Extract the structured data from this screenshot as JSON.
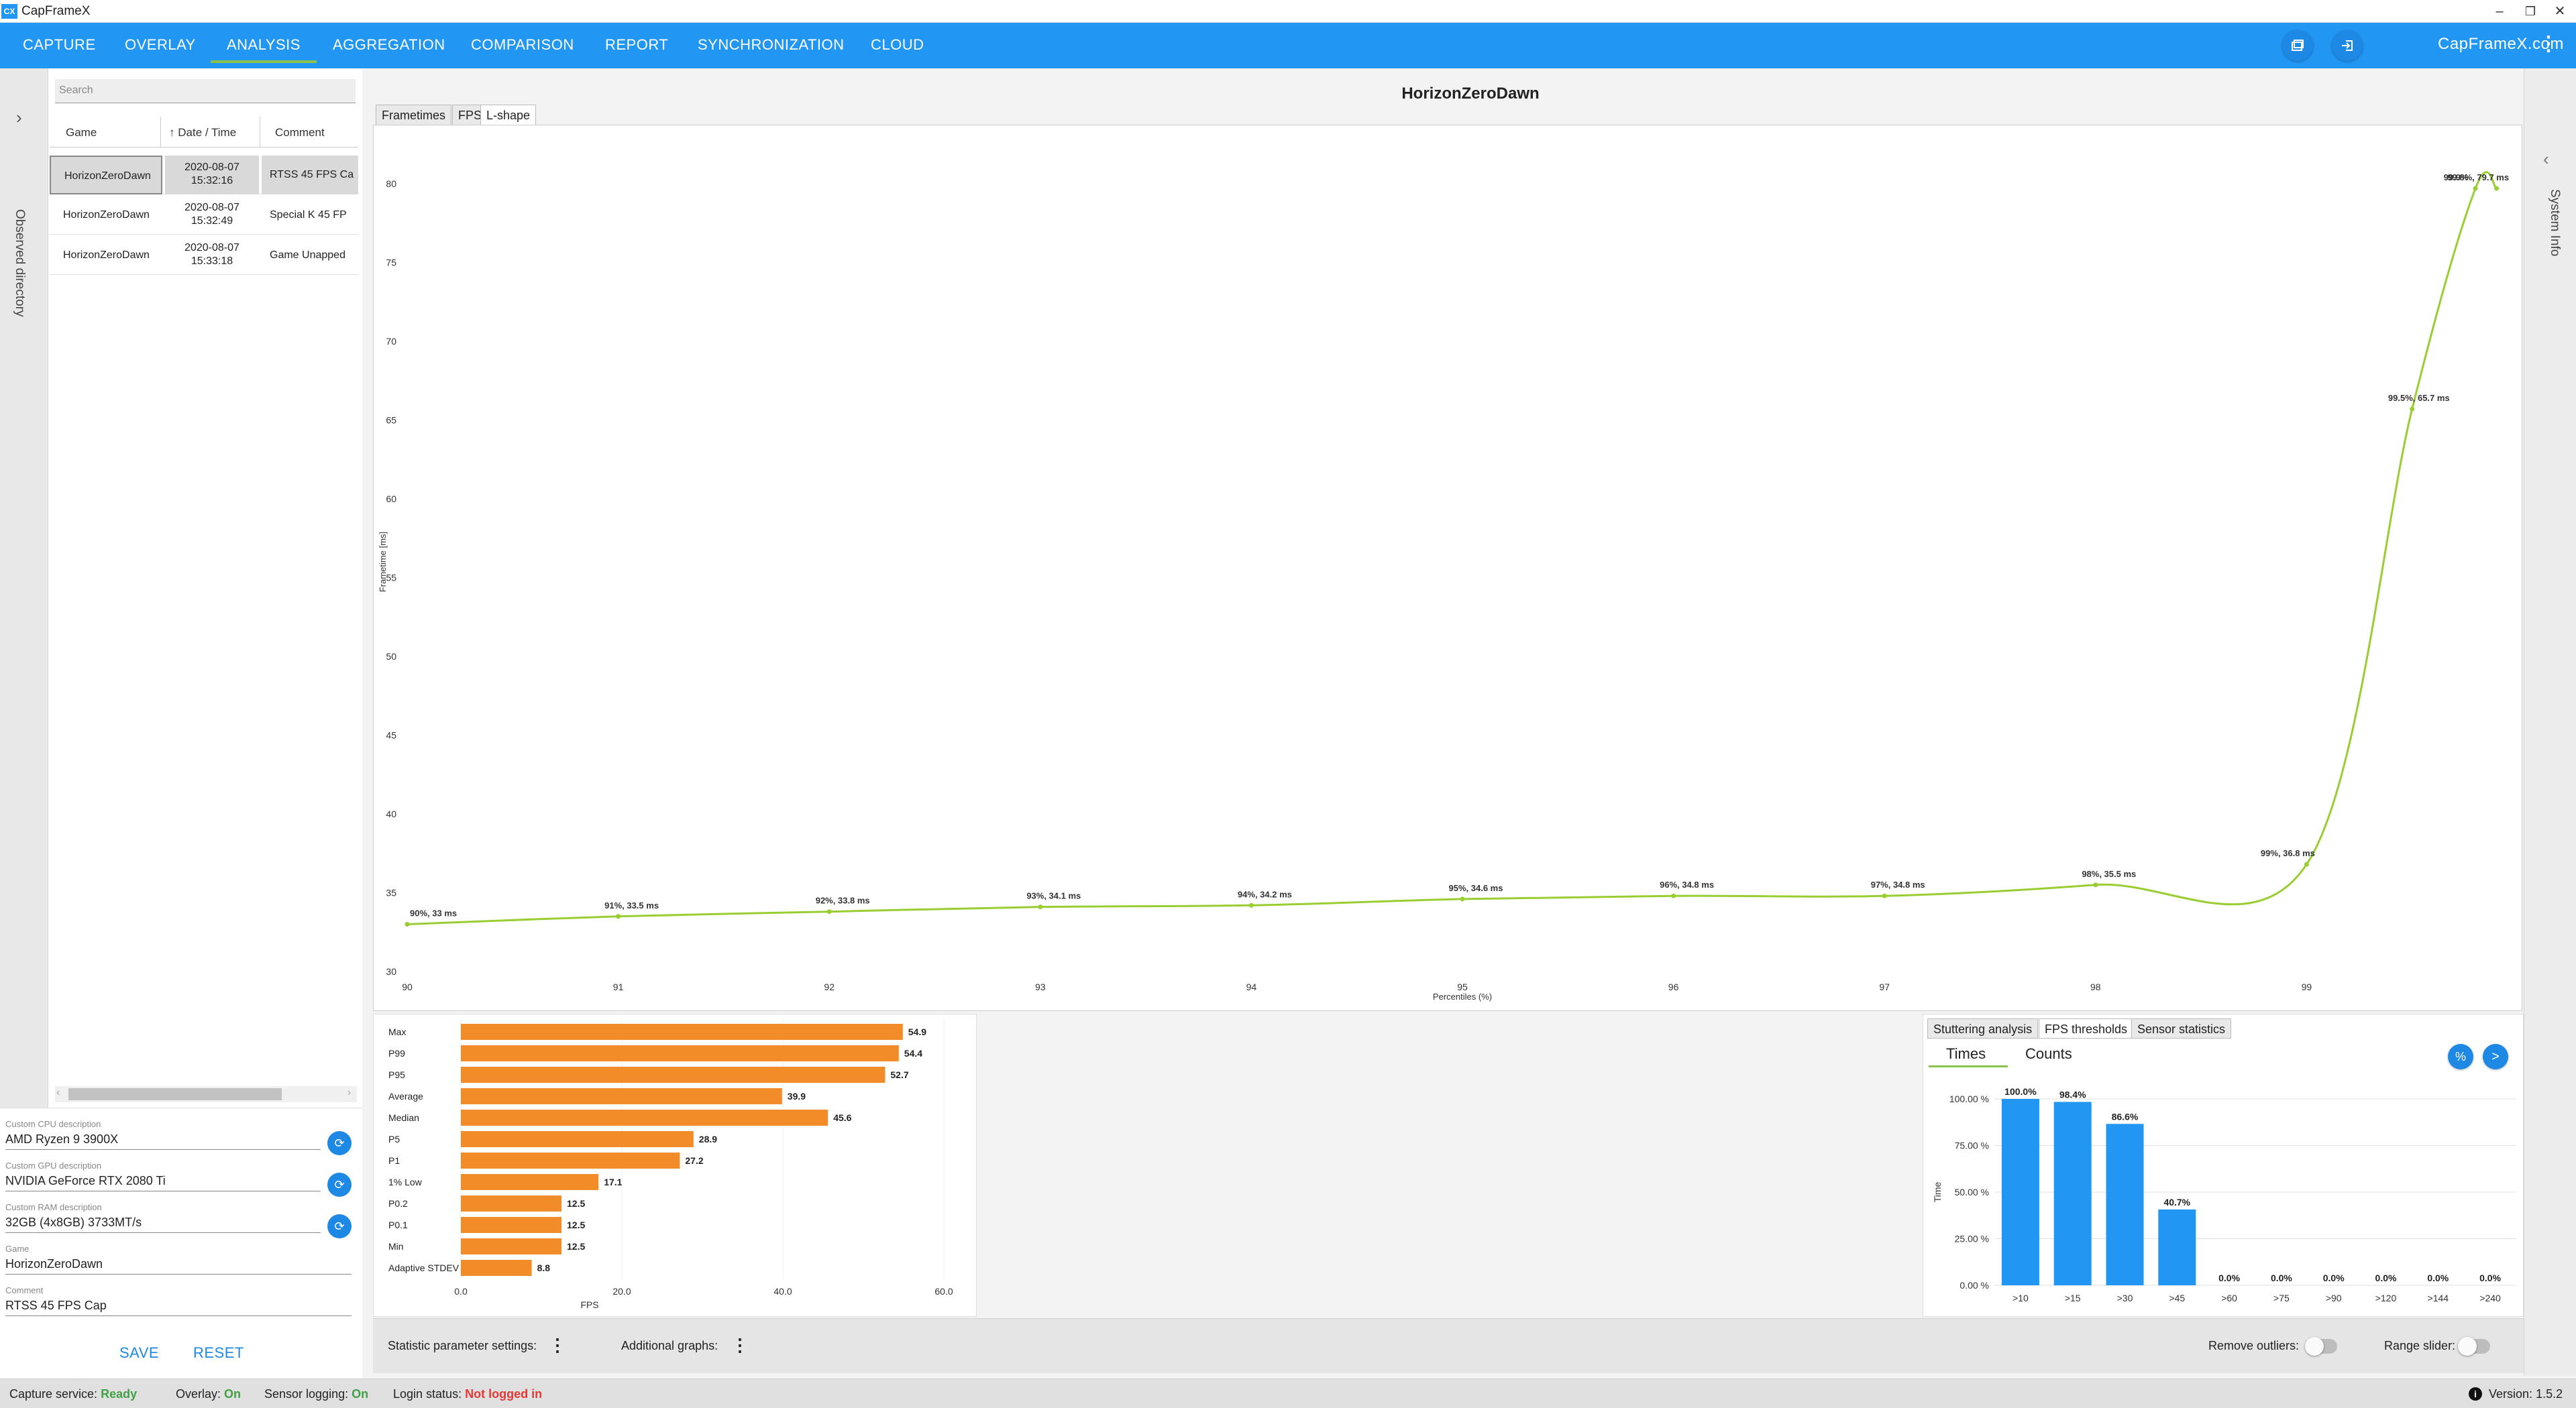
{
  "window": {
    "title": "CapFrameX",
    "logo_text": "CX",
    "controls": [
      "–",
      "❐",
      "✕"
    ]
  },
  "menu": {
    "items": [
      "CAPTURE",
      "OVERLAY",
      "ANALYSIS",
      "AGGREGATION",
      "COMPARISON",
      "REPORT",
      "SYNCHRONIZATION",
      "CLOUD"
    ],
    "active": "ANALYSIS",
    "website": "CapFrameX.com",
    "more": "⋮"
  },
  "observed_directory": {
    "label": "Observed directory",
    "chevron": "›"
  },
  "records": {
    "search_placeholder": "Search",
    "headers": {
      "game": "Game",
      "date_time": "Date / Time",
      "comment": "Comment",
      "sort_arrow": "↑"
    },
    "rows": [
      {
        "game": "HorizonZeroDawn",
        "date": "2020-08-07",
        "time": "15:32:16",
        "comment": "RTSS 45 FPS Ca",
        "selected": true
      },
      {
        "game": "HorizonZeroDawn",
        "date": "2020-08-07",
        "time": "15:32:49",
        "comment": "Special K 45 FP",
        "selected": false
      },
      {
        "game": "HorizonZeroDawn",
        "date": "2020-08-07",
        "time": "15:33:18",
        "comment": "Game Unapped",
        "selected": false
      }
    ]
  },
  "descriptions": {
    "cpu_label": "Custom CPU description",
    "cpu_value": "AMD Ryzen 9 3900X",
    "gpu_label": "Custom GPU description",
    "gpu_value": "NVIDIA GeForce RTX 2080 Ti",
    "ram_label": "Custom RAM description",
    "ram_value": "32GB (4x8GB) 3733MT/s",
    "game_label": "Game",
    "game_value": "HorizonZeroDawn",
    "comment_label": "Comment",
    "comment_value": "RTSS 45 FPS Cap",
    "save": "SAVE",
    "reset": "RESET"
  },
  "main": {
    "chart_title": "HorizonZeroDawn",
    "tabs": [
      "Frametimes",
      "FPS",
      "L-shape"
    ],
    "active_tab": "L-shape"
  },
  "system_info": {
    "label": "System Info",
    "chevron": "‹"
  },
  "chart_data": [
    {
      "type": "line",
      "title": "HorizonZeroDawn",
      "xlabel": "Percentiles (%)",
      "ylabel": "Frametime [ms]",
      "xlim": [
        90,
        100
      ],
      "ylim": [
        30,
        82
      ],
      "x_ticks": [
        90,
        91,
        92,
        93,
        94,
        95,
        96,
        97,
        98,
        99
      ],
      "y_ticks": [
        30,
        35,
        40,
        45,
        50,
        55,
        60,
        65,
        70,
        75,
        80
      ],
      "color": "#9acd32",
      "points": [
        {
          "x": 90,
          "y": 33,
          "label": "90%, 33 ms"
        },
        {
          "x": 91,
          "y": 33.5,
          "label": "91%, 33.5 ms"
        },
        {
          "x": 92,
          "y": 33.8,
          "label": "92%, 33.8 ms"
        },
        {
          "x": 93,
          "y": 34.1,
          "label": "93%, 34.1 ms"
        },
        {
          "x": 94,
          "y": 34.2,
          "label": "94%, 34.2 ms"
        },
        {
          "x": 95,
          "y": 34.6,
          "label": "95%, 34.6 ms"
        },
        {
          "x": 96,
          "y": 34.8,
          "label": "96%, 34.8 ms"
        },
        {
          "x": 97,
          "y": 34.8,
          "label": "97%, 34.8 ms"
        },
        {
          "x": 98,
          "y": 35.5,
          "label": "98%, 35.5 ms"
        },
        {
          "x": 99,
          "y": 36.8,
          "label": "99%, 36.8 ms"
        },
        {
          "x": 99.5,
          "y": 65.7,
          "label": "99.5%, 65.7 ms"
        },
        {
          "x": 99.8,
          "y": 79.7,
          "label": "99.8%, 79.7 ms"
        },
        {
          "x": 99.9,
          "y": 79.7,
          "label": "99.9%"
        }
      ]
    },
    {
      "type": "bar",
      "orientation": "horizontal",
      "xlabel": "FPS",
      "xlim": [
        0,
        60
      ],
      "x_ticks": [
        "0.0",
        "20.0",
        "40.0",
        "60.0"
      ],
      "color": "#f28c28",
      "categories": [
        "Max",
        "P99",
        "P95",
        "Average",
        "Median",
        "P5",
        "P1",
        "1% Low",
        "P0.2",
        "P0.1",
        "Min",
        "Adaptive STDEV"
      ],
      "values": [
        54.9,
        54.4,
        52.7,
        39.9,
        45.6,
        28.9,
        27.2,
        17.1,
        12.5,
        12.5,
        12.5,
        8.8
      ],
      "value_labels": [
        "54.9",
        "54.4",
        "52.7",
        "39.9",
        "45.6",
        "28.9",
        "27.2",
        "17.1",
        "12.5",
        "12.5",
        "12.5",
        "8.8"
      ]
    },
    {
      "type": "bar",
      "ylabel": "Time",
      "ylim": [
        0,
        100
      ],
      "y_ticks": [
        "0.00 %",
        "25.00 %",
        "50.00 %",
        "75.00 %",
        "100.00 %"
      ],
      "color": "#2196f3",
      "categories": [
        ">10",
        ">15",
        ">30",
        ">45",
        ">60",
        ">75",
        ">90",
        ">120",
        ">144",
        ">240"
      ],
      "values": [
        100.0,
        98.4,
        86.6,
        40.7,
        0.0,
        0.0,
        0.0,
        0.0,
        0.0,
        0.0
      ],
      "value_labels": [
        "100.0%",
        "98.4%",
        "86.6%",
        "40.7%",
        "0.0%",
        "0.0%",
        "0.0%",
        "0.0%",
        "0.0%",
        "0.0%"
      ]
    }
  ],
  "thresholds": {
    "tabs": [
      "Stuttering analysis",
      "FPS thresholds",
      "Sensor statistics"
    ],
    "active_tab": "FPS thresholds",
    "segments": [
      "Times",
      "Counts"
    ],
    "active_segment": "Times",
    "percent_btn": "%",
    "next_btn": ">"
  },
  "settings": {
    "stat_params": "Statistic parameter settings:",
    "additional_graphs": "Additional graphs:",
    "remove_outliers": "Remove outliers:",
    "range_slider": "Range slider:",
    "dots": "⋮"
  },
  "status": {
    "capture_label": "Capture service:",
    "capture_value": "Ready",
    "overlay_label": "Overlay:",
    "overlay_value": "On",
    "sensor_label": "Sensor logging:",
    "sensor_value": "On",
    "login_label": "Login status:",
    "login_value": "Not logged in",
    "version_label": "Version:",
    "version_value": "1.5.2",
    "info_icon": "i"
  }
}
